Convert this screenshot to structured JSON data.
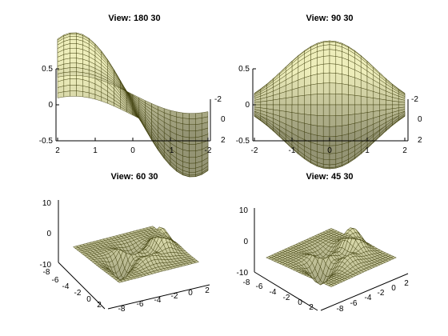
{
  "chart_data": [
    {
      "type": "surface",
      "title": "View: 180 30",
      "view": {
        "azimuth": 180,
        "elevation": 30
      },
      "function": "sin(x)*exp(-y^2/3)",
      "x_range": [
        -2,
        2
      ],
      "y_range": [
        -2,
        2
      ],
      "z_range": [
        -0.5,
        0.5
      ],
      "x_ticks": [
        "2",
        "1",
        "0",
        "-1",
        "-2"
      ],
      "z_ticks": [
        "0.5",
        "0",
        "-0.5"
      ],
      "depth_ticks": [
        "-2",
        "0",
        "2"
      ],
      "surface_color": "#eeeebb"
    },
    {
      "type": "surface",
      "title": "View: 90 30",
      "view": {
        "azimuth": 90,
        "elevation": 30
      },
      "function": "sin(x)*exp(-y^2/3)",
      "x_range": [
        -2,
        2
      ],
      "y_range": [
        -2,
        2
      ],
      "z_range": [
        -0.5,
        0.5
      ],
      "x_ticks": [
        "-2",
        "-1",
        "0",
        "1",
        "2"
      ],
      "z_ticks": [
        "0.5",
        "0",
        "-0.5"
      ],
      "depth_ticks": [
        "-2",
        "0",
        "2"
      ],
      "surface_color": "#eeeebb"
    },
    {
      "type": "surface",
      "title": "View: 60 30",
      "view": {
        "azimuth": 60,
        "elevation": 30
      },
      "function": "peaks",
      "x_range": [
        -8,
        2
      ],
      "y_range": [
        -8,
        2
      ],
      "z_range": [
        -10,
        10
      ],
      "x_ticks": [
        "-8",
        "-6",
        "-4",
        "-2",
        "0",
        "2"
      ],
      "y_ticks": [
        "-8",
        "-6",
        "-4",
        "-2",
        "0",
        "2"
      ],
      "z_ticks": [
        "10",
        "0",
        "-10"
      ],
      "surface_color": "#eeeebb"
    },
    {
      "type": "surface",
      "title": "View: 45 30",
      "view": {
        "azimuth": 45,
        "elevation": 30
      },
      "function": "peaks",
      "x_range": [
        -8,
        2
      ],
      "y_range": [
        -8,
        2
      ],
      "z_range": [
        -10,
        10
      ],
      "x_ticks": [
        "-8",
        "-6",
        "-4",
        "-2",
        "0",
        "2"
      ],
      "y_ticks": [
        "-8",
        "-6",
        "-4",
        "-2",
        "0",
        "2"
      ],
      "z_ticks": [
        "10",
        "0",
        "-10"
      ],
      "surface_color": "#eeeebb"
    }
  ]
}
